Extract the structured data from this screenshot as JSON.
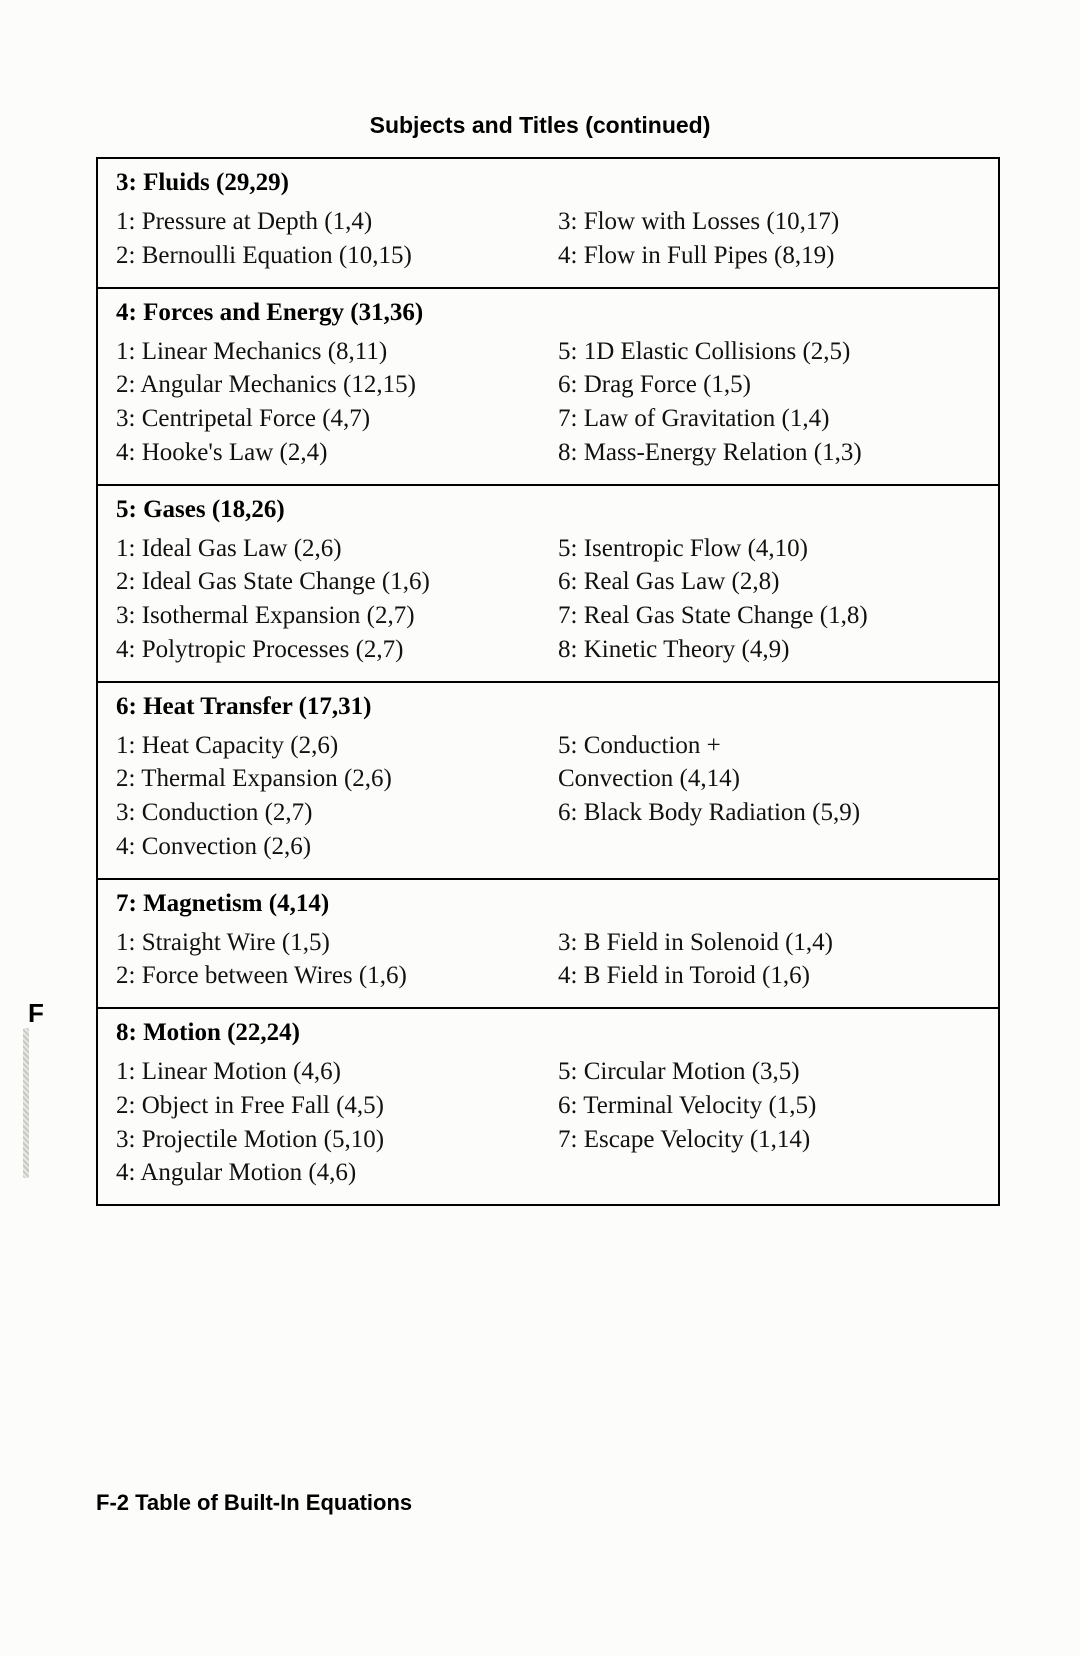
{
  "page_title": "Subjects and Titles (continued)",
  "side_tab_label": "F",
  "footer_text": "F-2   Table of Built-In Equations",
  "sections": [
    {
      "header": "3: Fluids (29,29)",
      "left": [
        "1:  Pressure at Depth (1,4)",
        "2:  Bernoulli Equation (10,15)"
      ],
      "right": [
        "3:  Flow with Losses (10,17)",
        "4:  Flow in Full Pipes (8,19)"
      ]
    },
    {
      "header": "4: Forces and Energy (31,36)",
      "left": [
        "1:  Linear Mechanics (8,11)",
        "2:  Angular Mechanics (12,15)",
        "3:  Centripetal Force (4,7)",
        "4:  Hooke's Law (2,4)"
      ],
      "right": [
        "5:  1D Elastic Collisions (2,5)",
        "6:  Drag Force (1,5)",
        "7:  Law of Gravitation (1,4)",
        "8:  Mass-Energy Relation (1,3)"
      ]
    },
    {
      "header": "5: Gases (18,26)",
      "left": [
        "1:  Ideal Gas Law (2,6)",
        "2:  Ideal Gas State Change (1,6)",
        "3:  Isothermal Expansion (2,7)",
        "4:  Polytropic Processes (2,7)"
      ],
      "right": [
        "5:  Isentropic Flow (4,10)",
        "6:  Real Gas Law (2,8)",
        "7:  Real Gas State Change (1,8)",
        "8:  Kinetic Theory (4,9)"
      ]
    },
    {
      "header": "6: Heat Transfer (17,31)",
      "left": [
        "1:  Heat Capacity (2,6)",
        "2:  Thermal Expansion (2,6)",
        "3:  Conduction (2,7)",
        "4:  Convection (2,6)"
      ],
      "right": [
        "5:  Conduction +",
        "Convection (4,14)",
        "6:  Black Body Radiation (5,9)"
      ]
    },
    {
      "header": "7: Magnetism (4,14)",
      "left": [
        "1:  Straight Wire (1,5)",
        "2:  Force between Wires (1,6)"
      ],
      "right": [
        "3:  B Field in Solenoid (1,4)",
        "4:  B Field in Toroid (1,6)"
      ]
    },
    {
      "header": "8: Motion (22,24)",
      "left": [
        "1:  Linear Motion (4,6)",
        "2:  Object in Free Fall (4,5)",
        "3:  Projectile Motion (5,10)",
        "4:  Angular Motion (4,6)"
      ],
      "right": [
        "5:  Circular Motion (3,5)",
        "6:  Terminal Velocity (1,5)",
        "7:  Escape Velocity (1,14)"
      ]
    }
  ]
}
